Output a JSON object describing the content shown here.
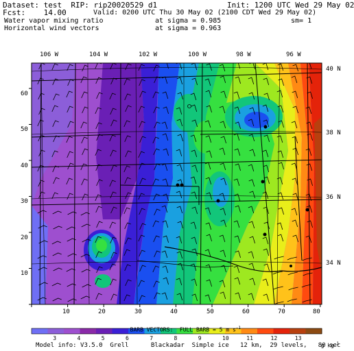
{
  "header": {
    "dataset_line": "Dataset: test  RIP: rip20020529 d1",
    "init_line": "Init: 1200 UTC Wed 29 May 02",
    "fcst_line": "Fcst:    14.00",
    "valid_line": "Valid: 0200 UTC Thu 30 May 02 (2100 CDT Wed 29 May 02)",
    "field1_name": "Water vapor mixing ratio",
    "field1_level": "at sigma = 0.985",
    "field1_extra": "sm= 1",
    "field2_name": "Horizontal wind vectors",
    "field2_level": "at sigma = 0.963"
  },
  "axes": {
    "top_lon_labels": [
      "106 W",
      "104 W",
      "102 W",
      "100 W",
      "98 W",
      "96 W"
    ],
    "right_lat_labels": [
      "40 N",
      "38 N",
      "36 N",
      "34 N"
    ],
    "left_grid_labels": [
      "60",
      "50",
      "40",
      "30",
      "20",
      "10"
    ],
    "bottom_grid_labels": [
      "10",
      "20",
      "30",
      "40",
      "50",
      "60",
      "70",
      "80"
    ]
  },
  "barbs_caption": "BARB VECTORS:  FULL BARB = 5 m s",
  "barbs_exponent": "-1",
  "colorbar": {
    "labels": [
      "3",
      "4",
      "5",
      "6",
      "7",
      "8",
      "9",
      "10",
      "11",
      "12",
      "13"
    ],
    "units": "g kg",
    "units_exp": "-1",
    "colors": [
      "#6f6ff5",
      "#8c5ed9",
      "#9e4fcf",
      "#8a2aa8",
      "#6a1fb5",
      "#3a1fd6",
      "#1a4ff0",
      "#1aa0e0",
      "#12c67a",
      "#36e040",
      "#9ee820",
      "#e9ee1a",
      "#ffc21a",
      "#ff8a14",
      "#ff4a0f",
      "#e4230a",
      "#b8400e",
      "#8c4a12"
    ]
  },
  "footer": "Model info: V3.5.0  Grell      Blackadar  Simple ice   12 km,  29 levels,   80 sec"
}
